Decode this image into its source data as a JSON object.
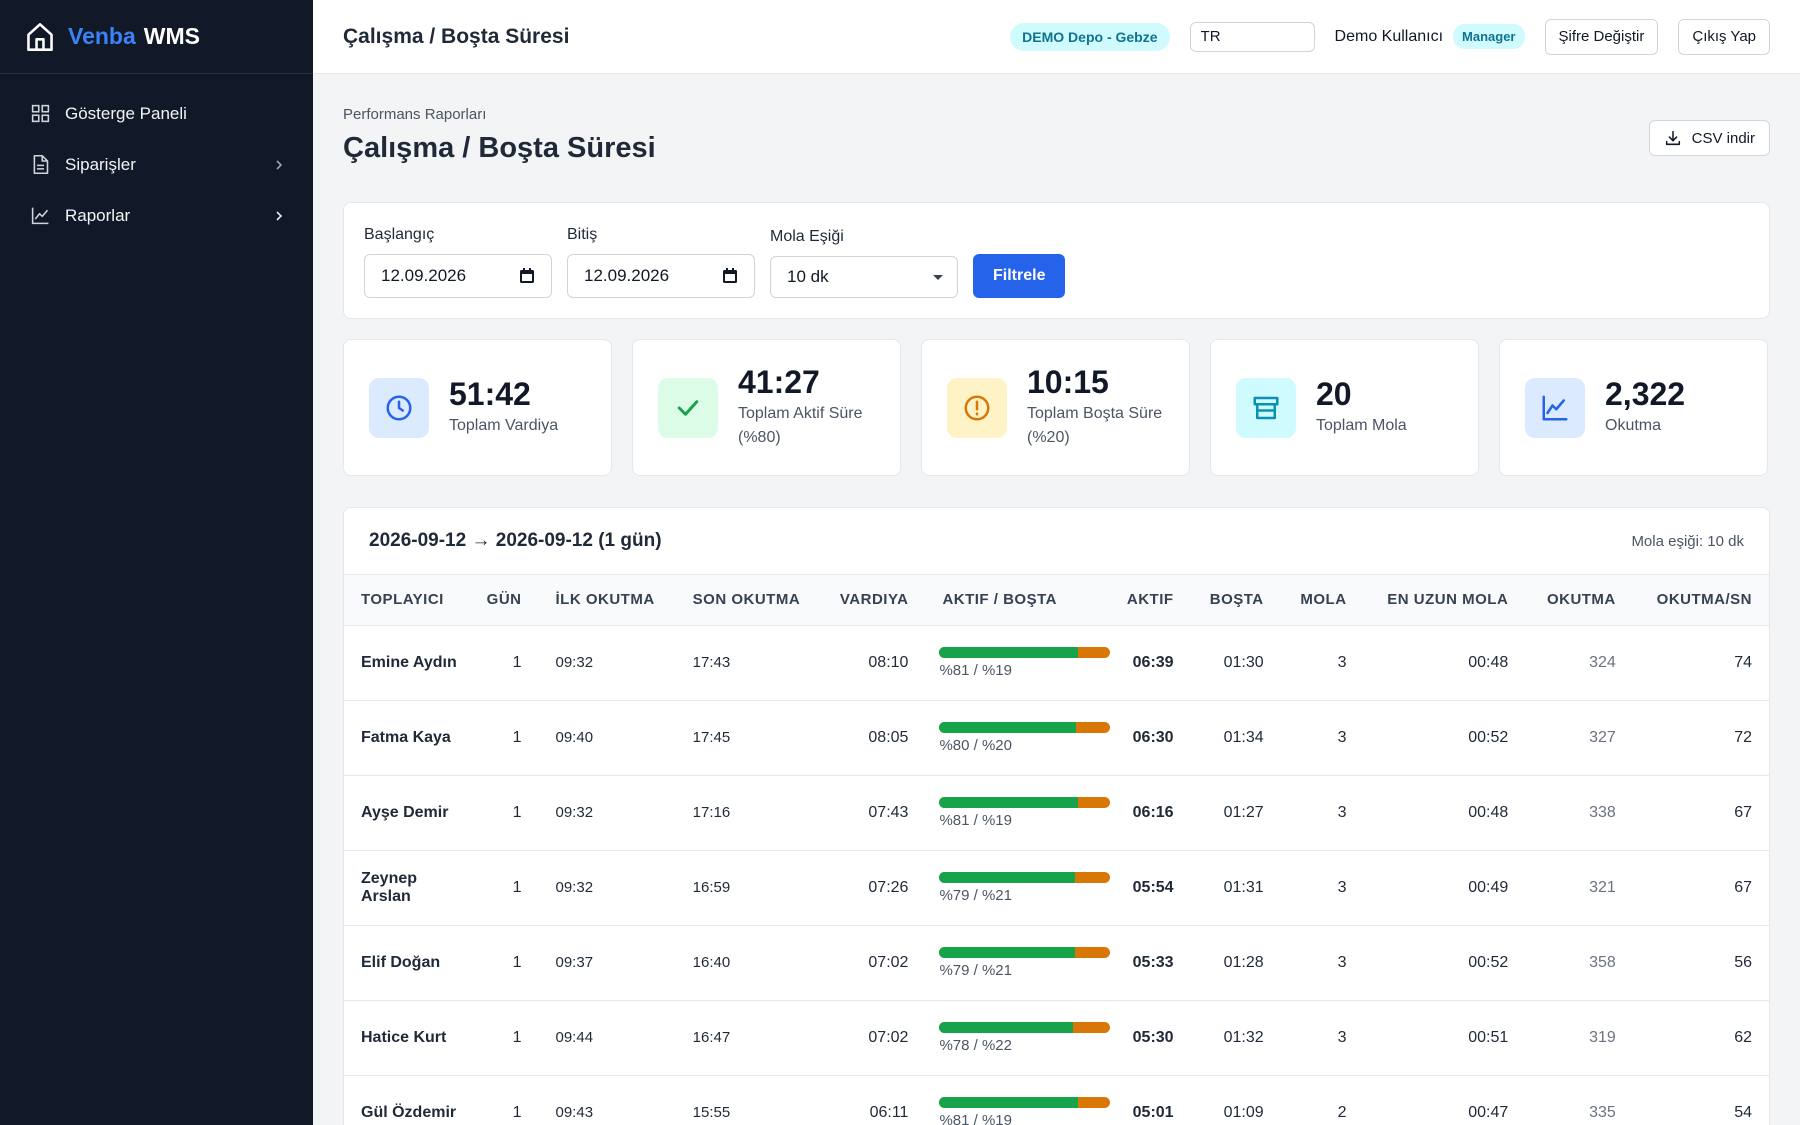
{
  "brand": {
    "part1": "Venba",
    "part2": "WMS"
  },
  "sidebar": {
    "items": [
      {
        "label": "Gösterge Paneli",
        "icon": "grid-icon"
      },
      {
        "label": "Siparişler",
        "icon": "document-icon"
      },
      {
        "label": "Raporlar",
        "icon": "chart-line-icon"
      }
    ]
  },
  "topbar": {
    "title": "Çalışma / Boşta Süresi",
    "depot": "DEMO Depo - Gebze",
    "lang_value": "TR",
    "user": "Demo Kullanıcı",
    "role": "Manager",
    "change_password": "Şifre Değiştir",
    "logout": "Çıkış Yap"
  },
  "page": {
    "breadcrumb": "Performans Raporları",
    "title": "Çalışma / Boşta Süresi",
    "csv_button": "CSV indir"
  },
  "filters": {
    "start_label": "Başlangıç",
    "start_value": "12.09.2026",
    "end_label": "Bitiş",
    "end_value": "12.09.2026",
    "threshold_label": "Mola Eşiği",
    "threshold_value": "10 dk",
    "submit": "Filtrele"
  },
  "stats": [
    {
      "value": "51:42",
      "label": "Toplam Vardiya",
      "icon": "clock-icon",
      "bg": "#dbeafe",
      "color": "#2563eb"
    },
    {
      "value": "41:27",
      "label": "Toplam Aktif Süre (%80)",
      "icon": "check-icon",
      "bg": "#dcfce7",
      "color": "#16a34a"
    },
    {
      "value": "10:15",
      "label": "Toplam Boşta Süre (%20)",
      "icon": "alert-circle-icon",
      "bg": "#fef3c7",
      "color": "#d97706"
    },
    {
      "value": "20",
      "label": "Toplam Mola",
      "icon": "archive-icon",
      "bg": "#cffafe",
      "color": "#0891b2"
    },
    {
      "value": "2,322",
      "label": "Okutma",
      "icon": "chart-line-icon",
      "bg": "#dbeafe",
      "color": "#2563eb"
    }
  ],
  "report": {
    "range_title": "2026-09-12 → 2026-09-12 (1 gün)",
    "threshold_note": "Mola eşiği: 10 dk",
    "columns": [
      "Toplayıcı",
      "Gün",
      "İlk Okutma",
      "Son Okutma",
      "Vardiya",
      "Aktif / Boşta",
      "Aktif",
      "Boşta",
      "Mola",
      "En Uzun Mola",
      "Okutma",
      "Okutma/Sn"
    ],
    "rows": [
      {
        "name": "Emine Aydın",
        "day": "1",
        "first": "09:32",
        "last": "17:43",
        "shift": "08:10",
        "active_pct": 81,
        "ratio": "%81 / %19",
        "active": "06:39",
        "idle": "01:30",
        "breaks": "3",
        "longest": "00:48",
        "scans": "324",
        "rate": "74"
      },
      {
        "name": "Fatma Kaya",
        "day": "1",
        "first": "09:40",
        "last": "17:45",
        "shift": "08:05",
        "active_pct": 80,
        "ratio": "%80 / %20",
        "active": "06:30",
        "idle": "01:34",
        "breaks": "3",
        "longest": "00:52",
        "scans": "327",
        "rate": "72"
      },
      {
        "name": "Ayşe Demir",
        "day": "1",
        "first": "09:32",
        "last": "17:16",
        "shift": "07:43",
        "active_pct": 81,
        "ratio": "%81 / %19",
        "active": "06:16",
        "idle": "01:27",
        "breaks": "3",
        "longest": "00:48",
        "scans": "338",
        "rate": "67"
      },
      {
        "name": "Zeynep Arslan",
        "day": "1",
        "first": "09:32",
        "last": "16:59",
        "shift": "07:26",
        "active_pct": 79,
        "ratio": "%79 / %21",
        "active": "05:54",
        "idle": "01:31",
        "breaks": "3",
        "longest": "00:49",
        "scans": "321",
        "rate": "67"
      },
      {
        "name": "Elif Doğan",
        "day": "1",
        "first": "09:37",
        "last": "16:40",
        "shift": "07:02",
        "active_pct": 79,
        "ratio": "%79 / %21",
        "active": "05:33",
        "idle": "01:28",
        "breaks": "3",
        "longest": "00:52",
        "scans": "358",
        "rate": "56"
      },
      {
        "name": "Hatice Kurt",
        "day": "1",
        "first": "09:44",
        "last": "16:47",
        "shift": "07:02",
        "active_pct": 78,
        "ratio": "%78 / %22",
        "active": "05:30",
        "idle": "01:32",
        "breaks": "3",
        "longest": "00:51",
        "scans": "319",
        "rate": "62"
      },
      {
        "name": "Gül Özdemir",
        "day": "1",
        "first": "09:43",
        "last": "15:55",
        "shift": "06:11",
        "active_pct": 81,
        "ratio": "%81 / %19",
        "active": "05:01",
        "idle": "01:09",
        "breaks": "2",
        "longest": "00:47",
        "scans": "335",
        "rate": "54"
      }
    ]
  },
  "colors": {
    "active_bar": "#16a34a",
    "idle_bar": "#d97706",
    "primary": "#2563eb",
    "sidebar_bg": "#111827"
  }
}
